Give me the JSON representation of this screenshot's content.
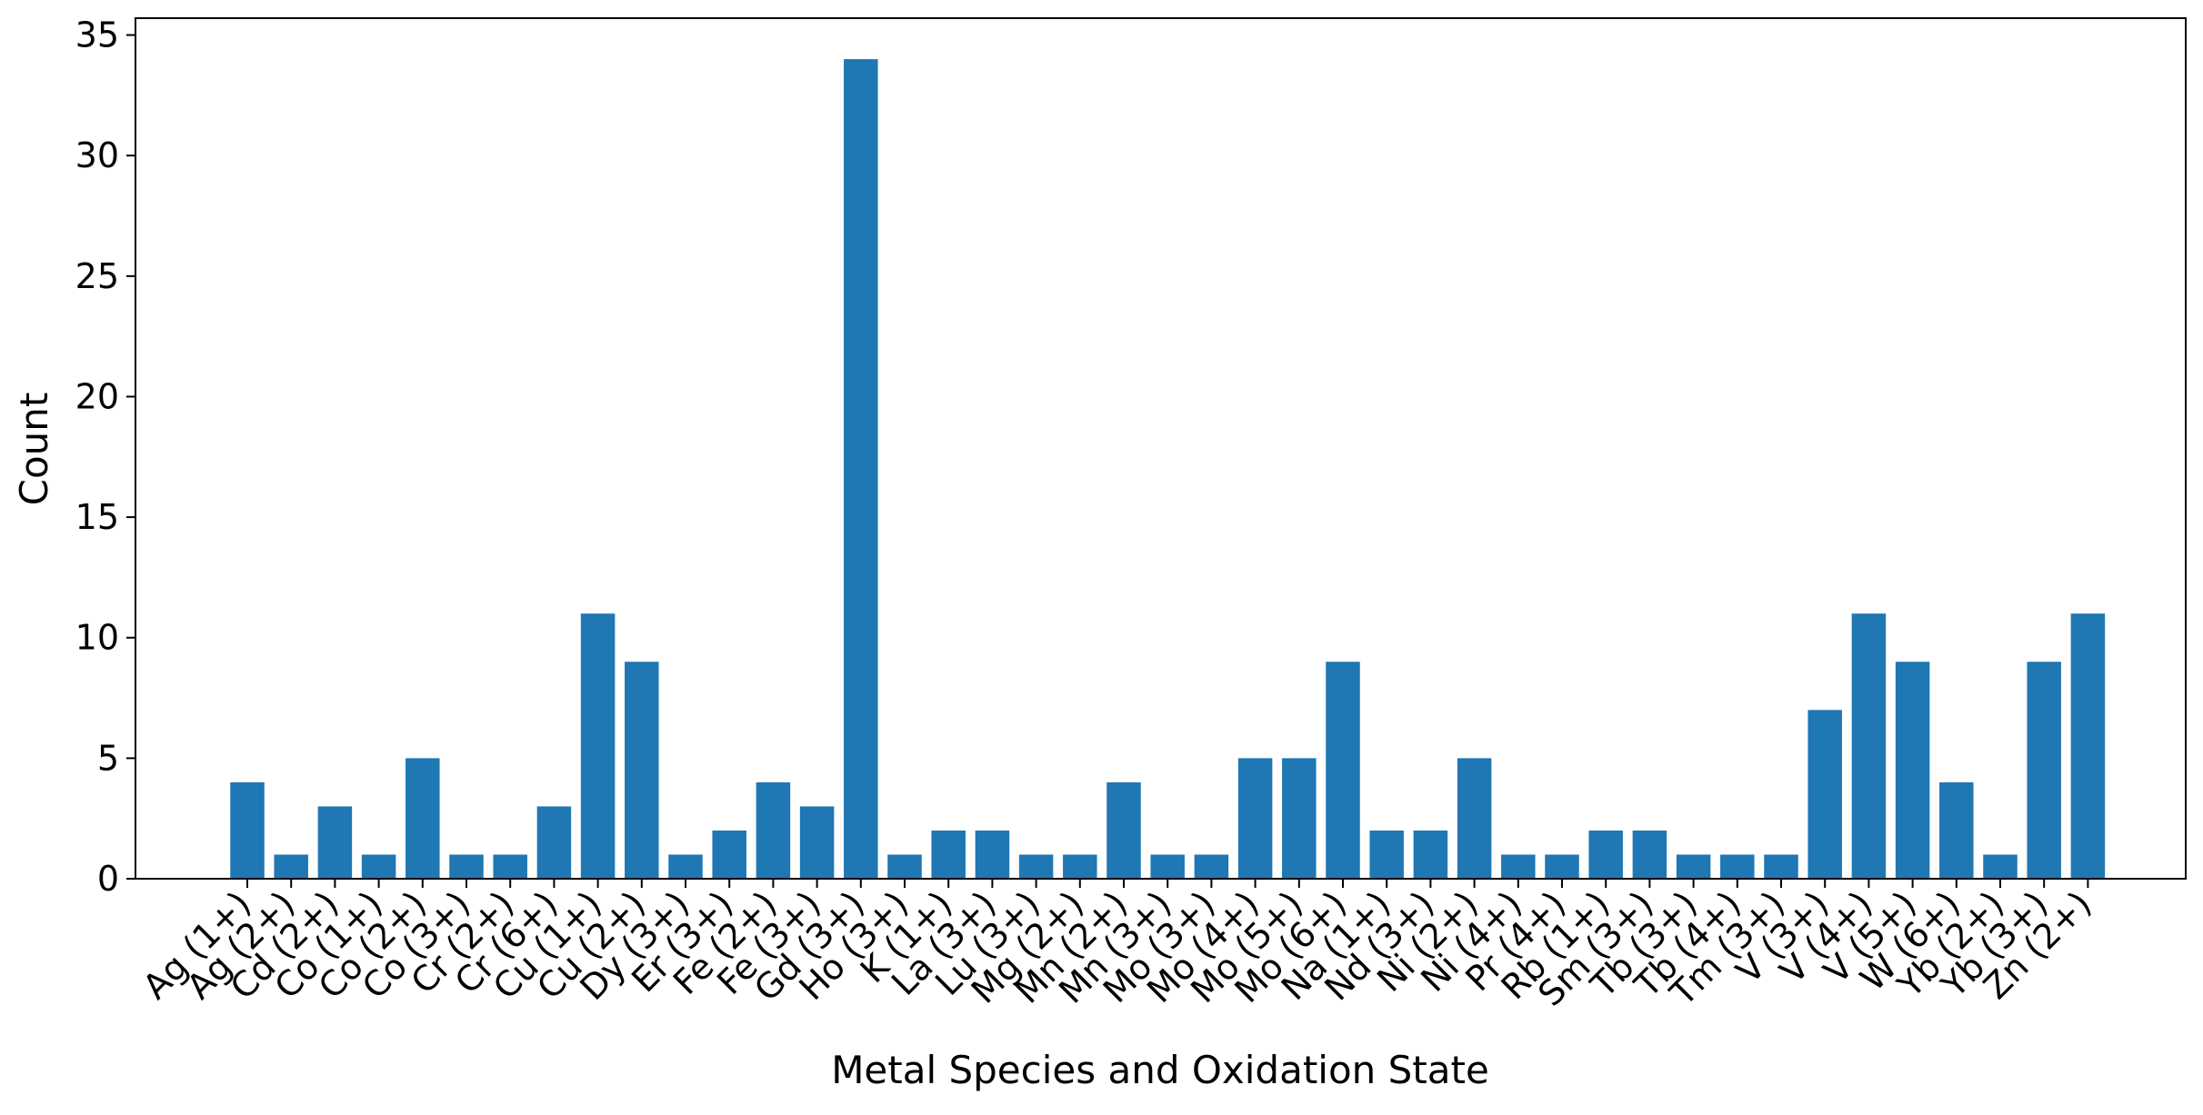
{
  "chart_data": {
    "type": "bar",
    "title": "",
    "xlabel": "Metal Species and Oxidation State",
    "ylabel": "Count",
    "ylim": [
      0,
      35.7
    ],
    "yticks": [
      0,
      5,
      10,
      15,
      20,
      25,
      30,
      35
    ],
    "grid": false,
    "bar_color": "#1f77b4",
    "categories": [
      "Ag (1+)",
      "Ag (2+)",
      "Cd (2+)",
      "Co (1+)",
      "Co (2+)",
      "Co (3+)",
      "Cr (2+)",
      "Cr (6+)",
      "Cu (1+)",
      "Cu (2+)",
      "Dy (3+)",
      "Er (3+)",
      "Fe (2+)",
      "Fe (3+)",
      "Gd (3+)",
      "Ho (3+)",
      "K (1+)",
      "La (3+)",
      "Lu (3+)",
      "Mg (2+)",
      "Mn (2+)",
      "Mn (3+)",
      "Mo (3+)",
      "Mo (4+)",
      "Mo (5+)",
      "Mo (6+)",
      "Na (1+)",
      "Nd (3+)",
      "Ni (2+)",
      "Ni (4+)",
      "Pr (4+)",
      "Rb (1+)",
      "Sm (3+)",
      "Tb (3+)",
      "Tb (4+)",
      "Tm (3+)",
      "V (3+)",
      "V (4+)",
      "V (5+)",
      "W (6+)",
      "Yb (2+)",
      "Yb (3+)",
      "Zn (2+)"
    ],
    "values": [
      4,
      1,
      3,
      1,
      5,
      1,
      1,
      3,
      11,
      9,
      1,
      2,
      4,
      3,
      34,
      1,
      2,
      2,
      1,
      1,
      4,
      1,
      1,
      5,
      5,
      9,
      2,
      2,
      5,
      1,
      1,
      2,
      2,
      1,
      1,
      1,
      7,
      11,
      9,
      4,
      1,
      9,
      11
    ]
  }
}
